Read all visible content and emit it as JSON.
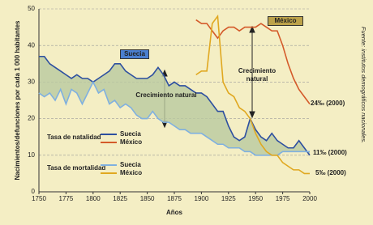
{
  "chart_data": {
    "type": "line",
    "ylabel": "Nacimientos/defunciones por cada 1 000 habitantes",
    "xlabel": "Años",
    "source": "Fuente: institutos demográficos nacionales.",
    "xlim": [
      1750,
      2000
    ],
    "xticks": [
      1750,
      1775,
      1800,
      1825,
      1850,
      1875,
      1900,
      1925,
      1950,
      1975,
      2000
    ],
    "ylim": [
      0,
      50
    ],
    "yticks": [
      0,
      10,
      20,
      30,
      40,
      50
    ],
    "grid": true,
    "x": [
      1750,
      1755,
      1760,
      1765,
      1770,
      1775,
      1780,
      1785,
      1790,
      1795,
      1800,
      1805,
      1810,
      1815,
      1820,
      1825,
      1830,
      1835,
      1840,
      1845,
      1850,
      1855,
      1860,
      1865,
      1870,
      1875,
      1880,
      1885,
      1890,
      1895,
      1900,
      1905,
      1910,
      1915,
      1920,
      1925,
      1930,
      1935,
      1940,
      1945,
      1950,
      1955,
      1960,
      1965,
      1970,
      1975,
      1980,
      1985,
      1990,
      1995,
      2000
    ],
    "legend_groups": [
      "Tasa de natalidad",
      "Tasa de mortalidad"
    ],
    "series": [
      {
        "name": "Suecia",
        "color": "#2d4fa0",
        "values": [
          37,
          37,
          35,
          34,
          33,
          32,
          31,
          32,
          31,
          31,
          30,
          31,
          32,
          33,
          35,
          35,
          33,
          32,
          31,
          31,
          31,
          32,
          34,
          32,
          29,
          30,
          29,
          29,
          28,
          27,
          27,
          26,
          24,
          22,
          22,
          18,
          15,
          14,
          15,
          20,
          17,
          15,
          14,
          16,
          14,
          13,
          12,
          12,
          14,
          12,
          10
        ]
      },
      {
        "name": "México",
        "color": "#d45a2a",
        "values": [
          null,
          null,
          null,
          null,
          null,
          null,
          null,
          null,
          null,
          null,
          null,
          null,
          null,
          null,
          null,
          null,
          null,
          null,
          null,
          null,
          null,
          null,
          null,
          null,
          null,
          null,
          null,
          null,
          null,
          47,
          46,
          46,
          44,
          42,
          44,
          45,
          45,
          44,
          45,
          45,
          45,
          46,
          45,
          44,
          44,
          40,
          35,
          31,
          28,
          26,
          24
        ]
      },
      {
        "name": "Suecia",
        "color": "#7fb0e0",
        "values": [
          27,
          26,
          27,
          25,
          28,
          24,
          28,
          27,
          24,
          27,
          30,
          27,
          28,
          24,
          25,
          23,
          24,
          23,
          21,
          20,
          20,
          22,
          20,
          19,
          19,
          18,
          17,
          17,
          16,
          16,
          16,
          15,
          14,
          13,
          13,
          12,
          12,
          12,
          11,
          11,
          10,
          10,
          10,
          10,
          10,
          11,
          11,
          11,
          11,
          11,
          11
        ]
      },
      {
        "name": "México",
        "color": "#e0a820",
        "values": [
          null,
          null,
          null,
          null,
          null,
          null,
          null,
          null,
          null,
          null,
          null,
          null,
          null,
          null,
          null,
          null,
          null,
          null,
          null,
          null,
          null,
          null,
          null,
          null,
          null,
          null,
          null,
          null,
          null,
          32,
          33,
          33,
          46,
          48,
          30,
          27,
          26,
          23,
          22,
          20,
          16,
          13,
          11,
          10,
          10,
          8,
          7,
          6,
          6,
          5,
          5
        ]
      }
    ],
    "fill_color": "#b9c9a0",
    "annotations": [
      "Suecia",
      "México",
      "Crecimiento natural",
      "Crecimiento natural",
      "24‰ (2000)",
      "11‰ (2000)",
      "5‰ (2000)"
    ]
  }
}
